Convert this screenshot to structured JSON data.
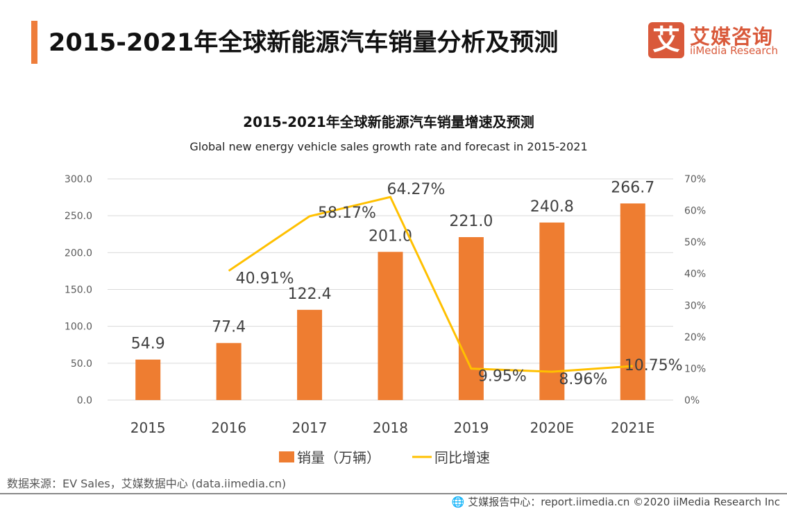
{
  "header": {
    "title": "2015-2021年全球新能源汽车销量分析及预测",
    "logo_glyph": "艾",
    "logo_cn": "艾媒咨询",
    "logo_en": "iiMedia Research",
    "accent": "#ee7d3b"
  },
  "chart_data": {
    "type": "bar+line",
    "title": "2015-2021年全球新能源汽车销量增速及预测",
    "subtitle": "Global new energy vehicle sales growth rate and forecast in 2015-2021",
    "categories": [
      "2015",
      "2016",
      "2017",
      "2018",
      "2019",
      "2020E",
      "2021E"
    ],
    "series": [
      {
        "name": "销量（万辆）",
        "type": "bar",
        "axis": "left",
        "color": "#ee7d31",
        "values": [
          54.9,
          77.4,
          122.4,
          201.0,
          221.0,
          240.8,
          266.7
        ],
        "labels": [
          "54.9",
          "77.4",
          "122.4",
          "201.0",
          "221.0",
          "240.8",
          "266.7"
        ]
      },
      {
        "name": "同比增速",
        "type": "line",
        "axis": "right",
        "color": "#ffc000",
        "values": [
          null,
          40.91,
          58.17,
          64.27,
          9.95,
          8.96,
          10.75
        ],
        "labels": [
          "",
          "40.91%",
          "58.17%",
          "64.27%",
          "9.95%",
          "8.96%",
          "10.75%"
        ]
      }
    ],
    "left_axis": {
      "ylim": [
        0,
        300
      ],
      "ticks": [
        "0.0",
        "50.0",
        "100.0",
        "150.0",
        "200.0",
        "250.0",
        "300.0"
      ]
    },
    "right_axis": {
      "ylim": [
        0,
        70
      ],
      "ticks": [
        "0%",
        "10%",
        "20%",
        "30%",
        "40%",
        "50%",
        "60%",
        "70%"
      ]
    },
    "grid": true,
    "legend": "bottom"
  },
  "footer": {
    "source": "数据来源：EV Sales，艾媒数据中心 (data.iimedia.cn)",
    "copyright": "艾媒报告中心：report.iimedia.cn   ©2020  iiMedia Research  Inc"
  }
}
